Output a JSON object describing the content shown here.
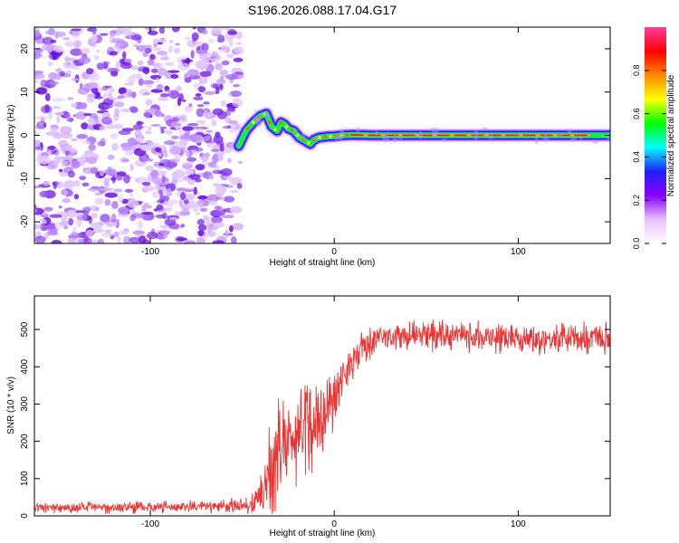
{
  "title": "S196.2026.088.17.04.G17",
  "chart_data": [
    {
      "type": "heatmap",
      "name": "spectrogram",
      "xlabel": "Height of straight line (km)",
      "ylabel": "Frequency (Hz)",
      "xlim": [
        -163,
        150
      ],
      "ylim": [
        -25,
        25
      ],
      "xticks": [
        -100,
        0,
        100
      ],
      "yticks": [
        20,
        10,
        0,
        -10,
        -20
      ],
      "noise_region_x": [
        -163,
        -51
      ],
      "trace": {
        "x": [
          -52,
          -48,
          -44,
          -40,
          -37,
          -34,
          -31,
          -29,
          -27,
          -25,
          -22,
          -19,
          -17,
          -15,
          -13,
          -11,
          -8,
          -4,
          0,
          5,
          10,
          20,
          40,
          80,
          120,
          150
        ],
        "f": [
          -2.5,
          1,
          3,
          4.5,
          5,
          2,
          1,
          3,
          2.5,
          1.5,
          1,
          -0.5,
          -1,
          -1.5,
          -2,
          -1,
          -0.5,
          -0.3,
          -0.2,
          0,
          0.1,
          0,
          0,
          0,
          0,
          0
        ]
      },
      "colorbar": {
        "label": "Normalized spectral amplitude",
        "ticks": [
          0.0,
          0.2,
          0.4,
          0.6,
          0.8
        ],
        "range": [
          0,
          1
        ],
        "colors": [
          "#ffffff",
          "#e8c0ff",
          "#8800ff",
          "#2020ff",
          "#00ffff",
          "#00ff00",
          "#ffff00",
          "#ff8800",
          "#ff0000",
          "#ff40a0"
        ]
      }
    },
    {
      "type": "line",
      "name": "snr",
      "xlabel": "Height of straight line (km)",
      "ylabel": "SNR (10 * v/v)",
      "xlim": [
        -163,
        150
      ],
      "ylim": [
        0,
        590
      ],
      "xticks": [
        -100,
        0,
        100
      ],
      "yticks": [
        0,
        100,
        200,
        300,
        400,
        500
      ],
      "series": [
        {
          "name": "SNR",
          "color": "#ee3333",
          "envelope_x": [
            -163,
            -60,
            -45,
            -40,
            -35,
            -30,
            -25,
            -20,
            -15,
            -10,
            -5,
            0,
            5,
            10,
            15,
            20,
            30,
            50,
            80,
            100,
            120,
            150
          ],
          "envelope_mean": [
            22,
            25,
            30,
            50,
            120,
            180,
            200,
            220,
            230,
            250,
            280,
            320,
            380,
            420,
            450,
            470,
            480,
            485,
            480,
            478,
            475,
            480
          ],
          "envelope_amp": [
            14,
            18,
            25,
            60,
            120,
            150,
            120,
            120,
            150,
            130,
            100,
            80,
            60,
            55,
            50,
            45,
            40,
            40,
            40,
            40,
            40,
            40
          ]
        }
      ]
    }
  ]
}
